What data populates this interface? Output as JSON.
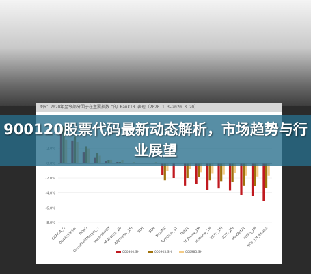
{
  "caption": "图6：2020年至今部分因子在主要指数上的 Rank10 表现（2020.1.3-2020.3.20）",
  "headline": "900120股票代码最新动态解析，市场趋势与行业展望",
  "colors": {
    "series1": "#c0191f",
    "series2": "#a0720c",
    "series3": "#f3cb86",
    "overlay": "#2d7e9b"
  },
  "chart_data": {
    "type": "bar",
    "categories": [
      "GGROA_Q",
      "QualityFactor",
      "ROAQ",
      "GrossProfitMargin_Q",
      "NetProfitYOY",
      "APBFactor_20",
      "APBFactor_1M",
      "SUE",
      "SUR",
      "TotalMV",
      "TurnOver_1Y",
      "Ret21",
      "HighLow_1M",
      "HighLow_2M",
      "VSTD_1M",
      "VSTD_2M",
      "MaxRet21",
      "IVFF3_1M",
      "STD_1M_Excess"
    ],
    "series": [
      {
        "name": "000300.SH",
        "values": [
          4.6,
          3.0,
          1.5,
          0.8,
          0.3,
          0.2,
          0.0,
          0.0,
          0.0,
          -1.6,
          -2.0,
          -3.0,
          -2.8,
          -3.6,
          -3.4,
          -3.7,
          -4.3,
          -4.4,
          -5.1
        ]
      },
      {
        "name": "000905.SH",
        "values": [
          5.0,
          3.6,
          2.3,
          1.4,
          0.4,
          0.2,
          0.0,
          0.0,
          0.0,
          -2.3,
          0.0,
          -2.0,
          -1.9,
          -2.3,
          -2.4,
          -2.5,
          -3.0,
          -3.1,
          -3.3
        ]
      },
      {
        "name": "000985.SH",
        "values": [
          3.2,
          2.8,
          2.0,
          1.0,
          0.5,
          0.4,
          0.2,
          0.0,
          0.2,
          -1.0,
          0.0,
          -0.8,
          -1.2,
          -1.4,
          -1.5,
          -1.3,
          -1.7,
          -1.8,
          -1.7
        ]
      }
    ],
    "yticks": [
      "4.0%",
      "2.0%",
      "0.0%",
      "-2.0%",
      "-4.0%",
      "-6.0%",
      "-8.0%"
    ],
    "ylim": [
      -8,
      4
    ],
    "grid": true,
    "legend_position": "bottom"
  }
}
